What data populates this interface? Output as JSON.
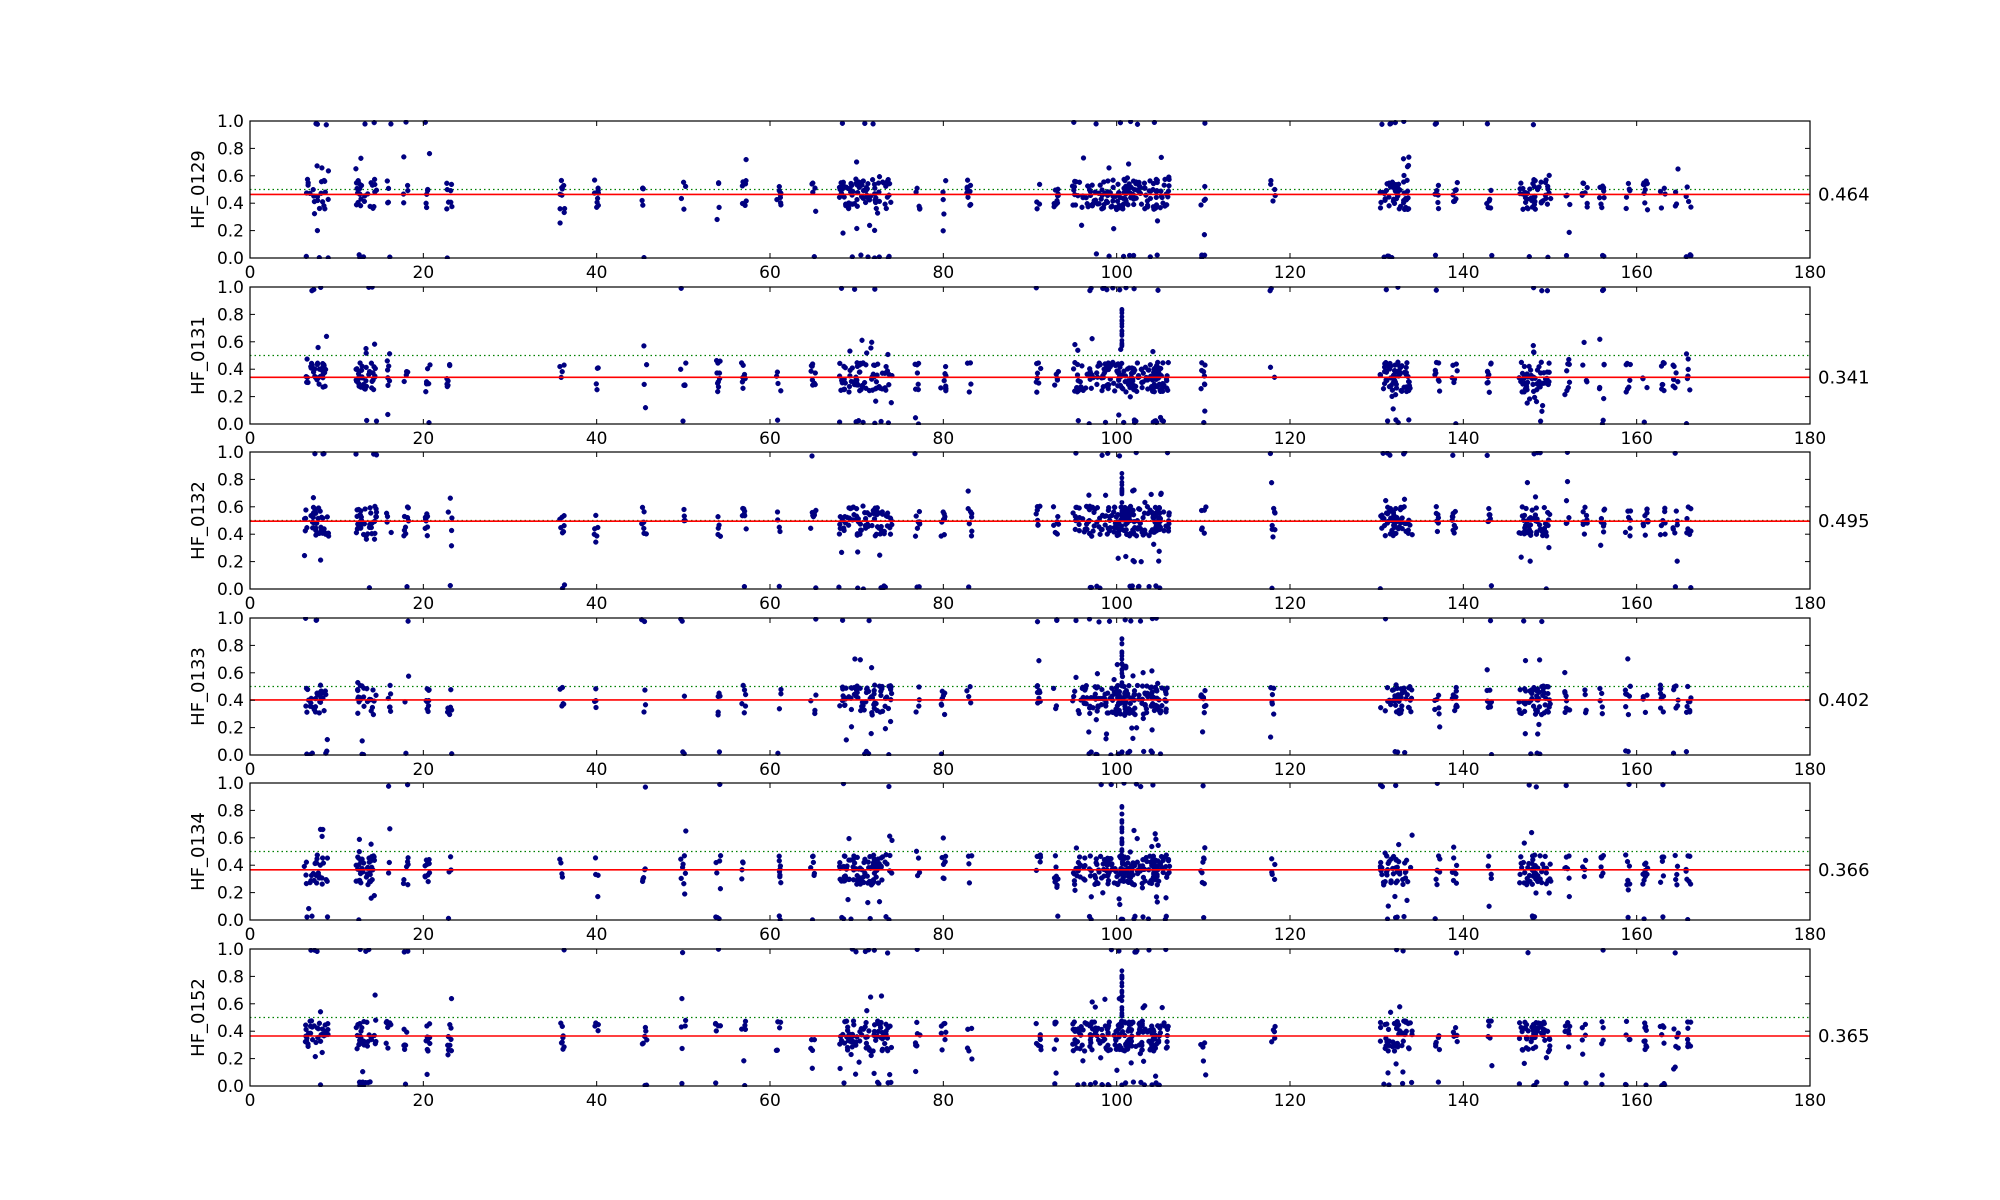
{
  "chart_data": [
    {
      "type": "scatter",
      "ylabel": "HF_0129",
      "mean_label": "0.464",
      "mean": 0.464,
      "reference": 0.5,
      "xlim": [
        0,
        180
      ],
      "ylim": [
        0,
        1
      ],
      "seed": 129,
      "xticks": [
        "0",
        "20",
        "40",
        "60",
        "80",
        "100",
        "120",
        "140",
        "160",
        "180"
      ],
      "yticks": [
        "0.0",
        "0.2",
        "0.4",
        "0.6",
        "0.8",
        "1.0"
      ]
    },
    {
      "type": "scatter",
      "ylabel": "HF_0131",
      "mean_label": "0.341",
      "mean": 0.341,
      "reference": 0.5,
      "xlim": [
        0,
        180
      ],
      "ylim": [
        0,
        1
      ],
      "seed": 131,
      "xticks": [
        "0",
        "20",
        "40",
        "60",
        "80",
        "100",
        "120",
        "140",
        "160",
        "180"
      ],
      "yticks": [
        "0.0",
        "0.2",
        "0.4",
        "0.6",
        "0.8",
        "1.0"
      ]
    },
    {
      "type": "scatter",
      "ylabel": "HF_0132",
      "mean_label": "0.495",
      "mean": 0.495,
      "reference": 0.5,
      "xlim": [
        0,
        180
      ],
      "ylim": [
        0,
        1
      ],
      "seed": 132,
      "xticks": [
        "0",
        "20",
        "40",
        "60",
        "80",
        "100",
        "120",
        "140",
        "160",
        "180"
      ],
      "yticks": [
        "0.0",
        "0.2",
        "0.4",
        "0.6",
        "0.8",
        "1.0"
      ]
    },
    {
      "type": "scatter",
      "ylabel": "HF_0133",
      "mean_label": "0.402",
      "mean": 0.402,
      "reference": 0.5,
      "xlim": [
        0,
        180
      ],
      "ylim": [
        0,
        1
      ],
      "seed": 133,
      "xticks": [
        "0",
        "20",
        "40",
        "60",
        "80",
        "100",
        "120",
        "140",
        "160",
        "180"
      ],
      "yticks": [
        "0.0",
        "0.2",
        "0.4",
        "0.6",
        "0.8",
        "1.0"
      ]
    },
    {
      "type": "scatter",
      "ylabel": "HF_0134",
      "mean_label": "0.366",
      "mean": 0.366,
      "reference": 0.5,
      "xlim": [
        0,
        180
      ],
      "ylim": [
        0,
        1
      ],
      "seed": 134,
      "xticks": [
        "0",
        "20",
        "40",
        "60",
        "80",
        "100",
        "120",
        "140",
        "160",
        "180"
      ],
      "yticks": [
        "0.0",
        "0.2",
        "0.4",
        "0.6",
        "0.8",
        "1.0"
      ]
    },
    {
      "type": "scatter",
      "ylabel": "HF_0152",
      "mean_label": "0.365",
      "mean": 0.365,
      "reference": 0.5,
      "xlim": [
        0,
        180
      ],
      "ylim": [
        0,
        1
      ],
      "seed": 152,
      "xticks": [
        "0",
        "20",
        "40",
        "60",
        "80",
        "100",
        "120",
        "140",
        "160",
        "180"
      ],
      "yticks": [
        "0.0",
        "0.2",
        "0.4",
        "0.6",
        "0.8",
        "1.0"
      ]
    }
  ],
  "clusters_x": [
    6.5,
    8,
    12.5,
    13.5,
    16,
    18,
    20.5,
    23,
    36,
    40,
    45.5,
    50,
    54,
    57,
    61,
    65,
    69,
    71,
    73,
    77,
    80,
    83,
    91,
    93,
    96,
    98,
    100,
    101,
    102,
    104,
    105,
    110,
    118,
    131.5,
    133,
    137,
    139,
    143,
    147.5,
    149,
    152,
    154,
    156,
    159,
    161,
    163,
    164.5,
    166
  ],
  "colors": {
    "points": "#000080",
    "mean_line": "#ff0000",
    "reference_line": "#008000",
    "axes": "#000000"
  }
}
